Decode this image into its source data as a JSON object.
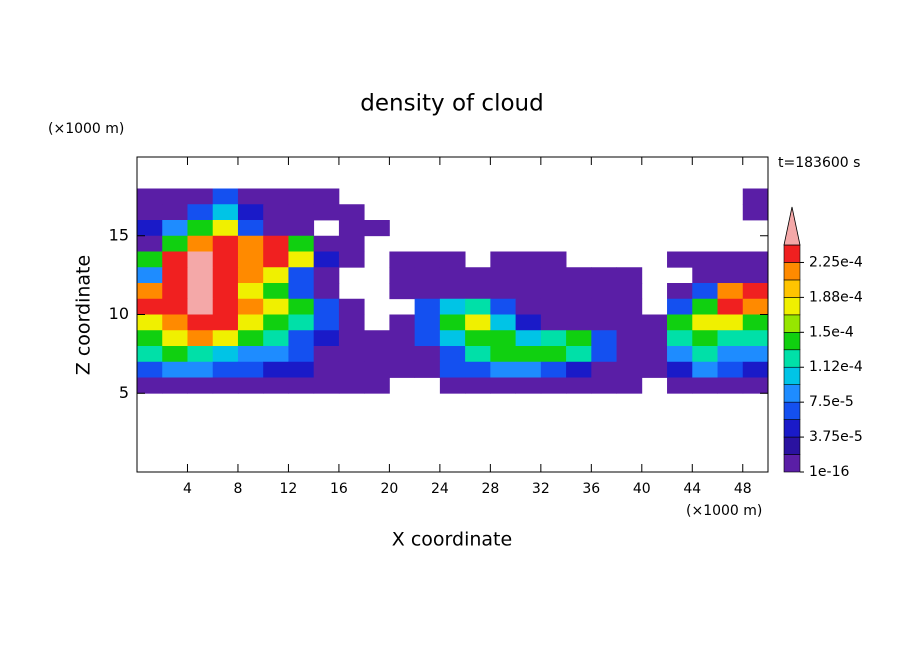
{
  "chart_data": {
    "type": "contour",
    "title": "density of cloud",
    "xlabel": "X coordinate",
    "ylabel": "Z coordinate",
    "x_unit": "(×1000 m)",
    "y_unit": "(×1000 m)",
    "time_label": "t=183600 s",
    "xlim": [
      0,
      50
    ],
    "ylim": [
      0,
      20
    ],
    "xticks": [
      4,
      8,
      12,
      16,
      20,
      24,
      28,
      32,
      36,
      40,
      44,
      48
    ],
    "yticks": [
      5,
      10,
      15
    ],
    "x": [
      1,
      3,
      5,
      7,
      9,
      11,
      13,
      15,
      17,
      19,
      21,
      23,
      25,
      27,
      29,
      31,
      33,
      35,
      37,
      39,
      41,
      43,
      45,
      47,
      49
    ],
    "z": [
      17.5,
      16.5,
      15.5,
      14.5,
      13.5,
      12.5,
      11.5,
      10.5,
      9.5,
      8.5,
      7.5,
      6.5,
      5.5
    ],
    "values": [
      [
        5e-06,
        5e-06,
        5e-06,
        6.5e-05,
        5e-06,
        5e-06,
        5e-06,
        5e-06,
        null,
        null,
        null,
        null,
        null,
        null,
        null,
        null,
        null,
        null,
        null,
        null,
        null,
        null,
        null,
        null,
        5e-06
      ],
      [
        5e-06,
        5e-06,
        6.5e-05,
        0.0001,
        4.5e-05,
        5e-06,
        5e-06,
        5e-06,
        5e-06,
        null,
        null,
        null,
        null,
        null,
        null,
        null,
        null,
        null,
        null,
        null,
        null,
        null,
        null,
        null,
        5e-06
      ],
      [
        4.5e-05,
        8.5e-05,
        0.00014,
        0.00018,
        6.5e-05,
        5e-06,
        5e-06,
        null,
        5e-06,
        5e-06,
        null,
        null,
        null,
        null,
        null,
        null,
        null,
        null,
        null,
        null,
        null,
        null,
        null,
        null,
        null
      ],
      [
        5e-06,
        0.00014,
        0.000215,
        0.000235,
        0.000215,
        0.000235,
        0.00014,
        5e-06,
        5e-06,
        null,
        null,
        null,
        null,
        null,
        null,
        null,
        null,
        null,
        null,
        null,
        null,
        null,
        null,
        null,
        null
      ],
      [
        0.00014,
        0.000235,
        0.00026,
        0.000235,
        0.000215,
        0.000235,
        0.00018,
        4.5e-05,
        5e-06,
        null,
        5e-06,
        5e-06,
        5e-06,
        null,
        5e-06,
        5e-06,
        5e-06,
        null,
        null,
        null,
        null,
        5e-06,
        5e-06,
        5e-06,
        5e-06
      ],
      [
        8.5e-05,
        0.000235,
        0.00026,
        0.000235,
        0.000215,
        0.00018,
        6.5e-05,
        5e-06,
        null,
        null,
        5e-06,
        5e-06,
        5e-06,
        5e-06,
        5e-06,
        5e-06,
        5e-06,
        5e-06,
        5e-06,
        5e-06,
        null,
        null,
        5e-06,
        5e-06,
        5e-06
      ],
      [
        0.000215,
        0.000235,
        0.00026,
        0.000235,
        0.00018,
        0.00014,
        6.5e-05,
        5e-06,
        null,
        null,
        5e-06,
        5e-06,
        5e-06,
        5e-06,
        5e-06,
        5e-06,
        5e-06,
        5e-06,
        5e-06,
        5e-06,
        null,
        5e-06,
        6.5e-05,
        0.000215,
        0.000235
      ],
      [
        0.000235,
        0.000235,
        0.00026,
        0.000235,
        0.000215,
        0.00018,
        0.00014,
        6.5e-05,
        5e-06,
        null,
        null,
        6.5e-05,
        0.0001,
        0.00012,
        6.5e-05,
        5e-06,
        5e-06,
        5e-06,
        5e-06,
        5e-06,
        null,
        6.5e-05,
        0.00014,
        0.000235,
        0.000215
      ],
      [
        0.00018,
        0.000215,
        0.000235,
        0.000235,
        0.00018,
        0.00014,
        0.00012,
        6.5e-05,
        5e-06,
        null,
        5e-06,
        6.5e-05,
        0.00014,
        0.00018,
        0.0001,
        4.5e-05,
        5e-06,
        5e-06,
        5e-06,
        5e-06,
        5e-06,
        0.00014,
        0.00018,
        0.00018,
        0.00014
      ],
      [
        0.00014,
        0.00018,
        0.000215,
        0.00018,
        0.00014,
        0.00012,
        6.5e-05,
        4.5e-05,
        5e-06,
        5e-06,
        5e-06,
        6.5e-05,
        0.0001,
        0.00014,
        0.00014,
        0.0001,
        0.00012,
        0.00014,
        6.5e-05,
        5e-06,
        5e-06,
        0.00012,
        0.00014,
        0.00012,
        0.00012
      ],
      [
        0.00012,
        0.00014,
        0.00012,
        0.0001,
        8.5e-05,
        8.5e-05,
        6.5e-05,
        5e-06,
        5e-06,
        5e-06,
        5e-06,
        5e-06,
        6.5e-05,
        0.00012,
        0.00014,
        0.00014,
        0.00014,
        0.00012,
        6.5e-05,
        5e-06,
        5e-06,
        8.5e-05,
        0.00012,
        8.5e-05,
        8.5e-05
      ],
      [
        6.5e-05,
        8.5e-05,
        8.5e-05,
        6.5e-05,
        6.5e-05,
        4.5e-05,
        4.5e-05,
        5e-06,
        5e-06,
        5e-06,
        5e-06,
        5e-06,
        6.5e-05,
        6.5e-05,
        8.5e-05,
        8.5e-05,
        6.5e-05,
        4.5e-05,
        5e-06,
        5e-06,
        5e-06,
        4.5e-05,
        8.5e-05,
        6.5e-05,
        4.5e-05
      ],
      [
        5e-06,
        5e-06,
        5e-06,
        5e-06,
        5e-06,
        5e-06,
        5e-06,
        5e-06,
        5e-06,
        5e-06,
        null,
        null,
        5e-06,
        5e-06,
        5e-06,
        5e-06,
        5e-06,
        5e-06,
        5e-06,
        5e-06,
        null,
        5e-06,
        5e-06,
        5e-06,
        5e-06
      ]
    ],
    "levels": [
      1e-16,
      1.875e-05,
      3.75e-05,
      5.625e-05,
      7.5e-05,
      9.375e-05,
      0.0001125,
      0.00013125,
      0.00015,
      0.00016875,
      0.0001875,
      0.00020625,
      0.000225,
      0.00024375
    ],
    "colors": [
      "#5a1ea6",
      "#2a12a0",
      "#1a1ac8",
      "#1450f0",
      "#1e8cff",
      "#00c4e6",
      "#00e0a8",
      "#10d010",
      "#96e600",
      "#f0f000",
      "#ffc400",
      "#ff8a00",
      "#f02020"
    ],
    "extend_color": "#f4a8a8",
    "colorbar_ticks": [
      {
        "value": 1e-16,
        "label": "1e-16"
      },
      {
        "value": 3.75e-05,
        "label": "3.75e-5"
      },
      {
        "value": 7.5e-05,
        "label": "7.5e-5"
      },
      {
        "value": 0.0001125,
        "label": "1.12e-4"
      },
      {
        "value": 0.00015,
        "label": "1.5e-4"
      },
      {
        "value": 0.0001875,
        "label": "1.88e-4"
      },
      {
        "value": 0.000225,
        "label": "2.25e-4"
      }
    ]
  }
}
